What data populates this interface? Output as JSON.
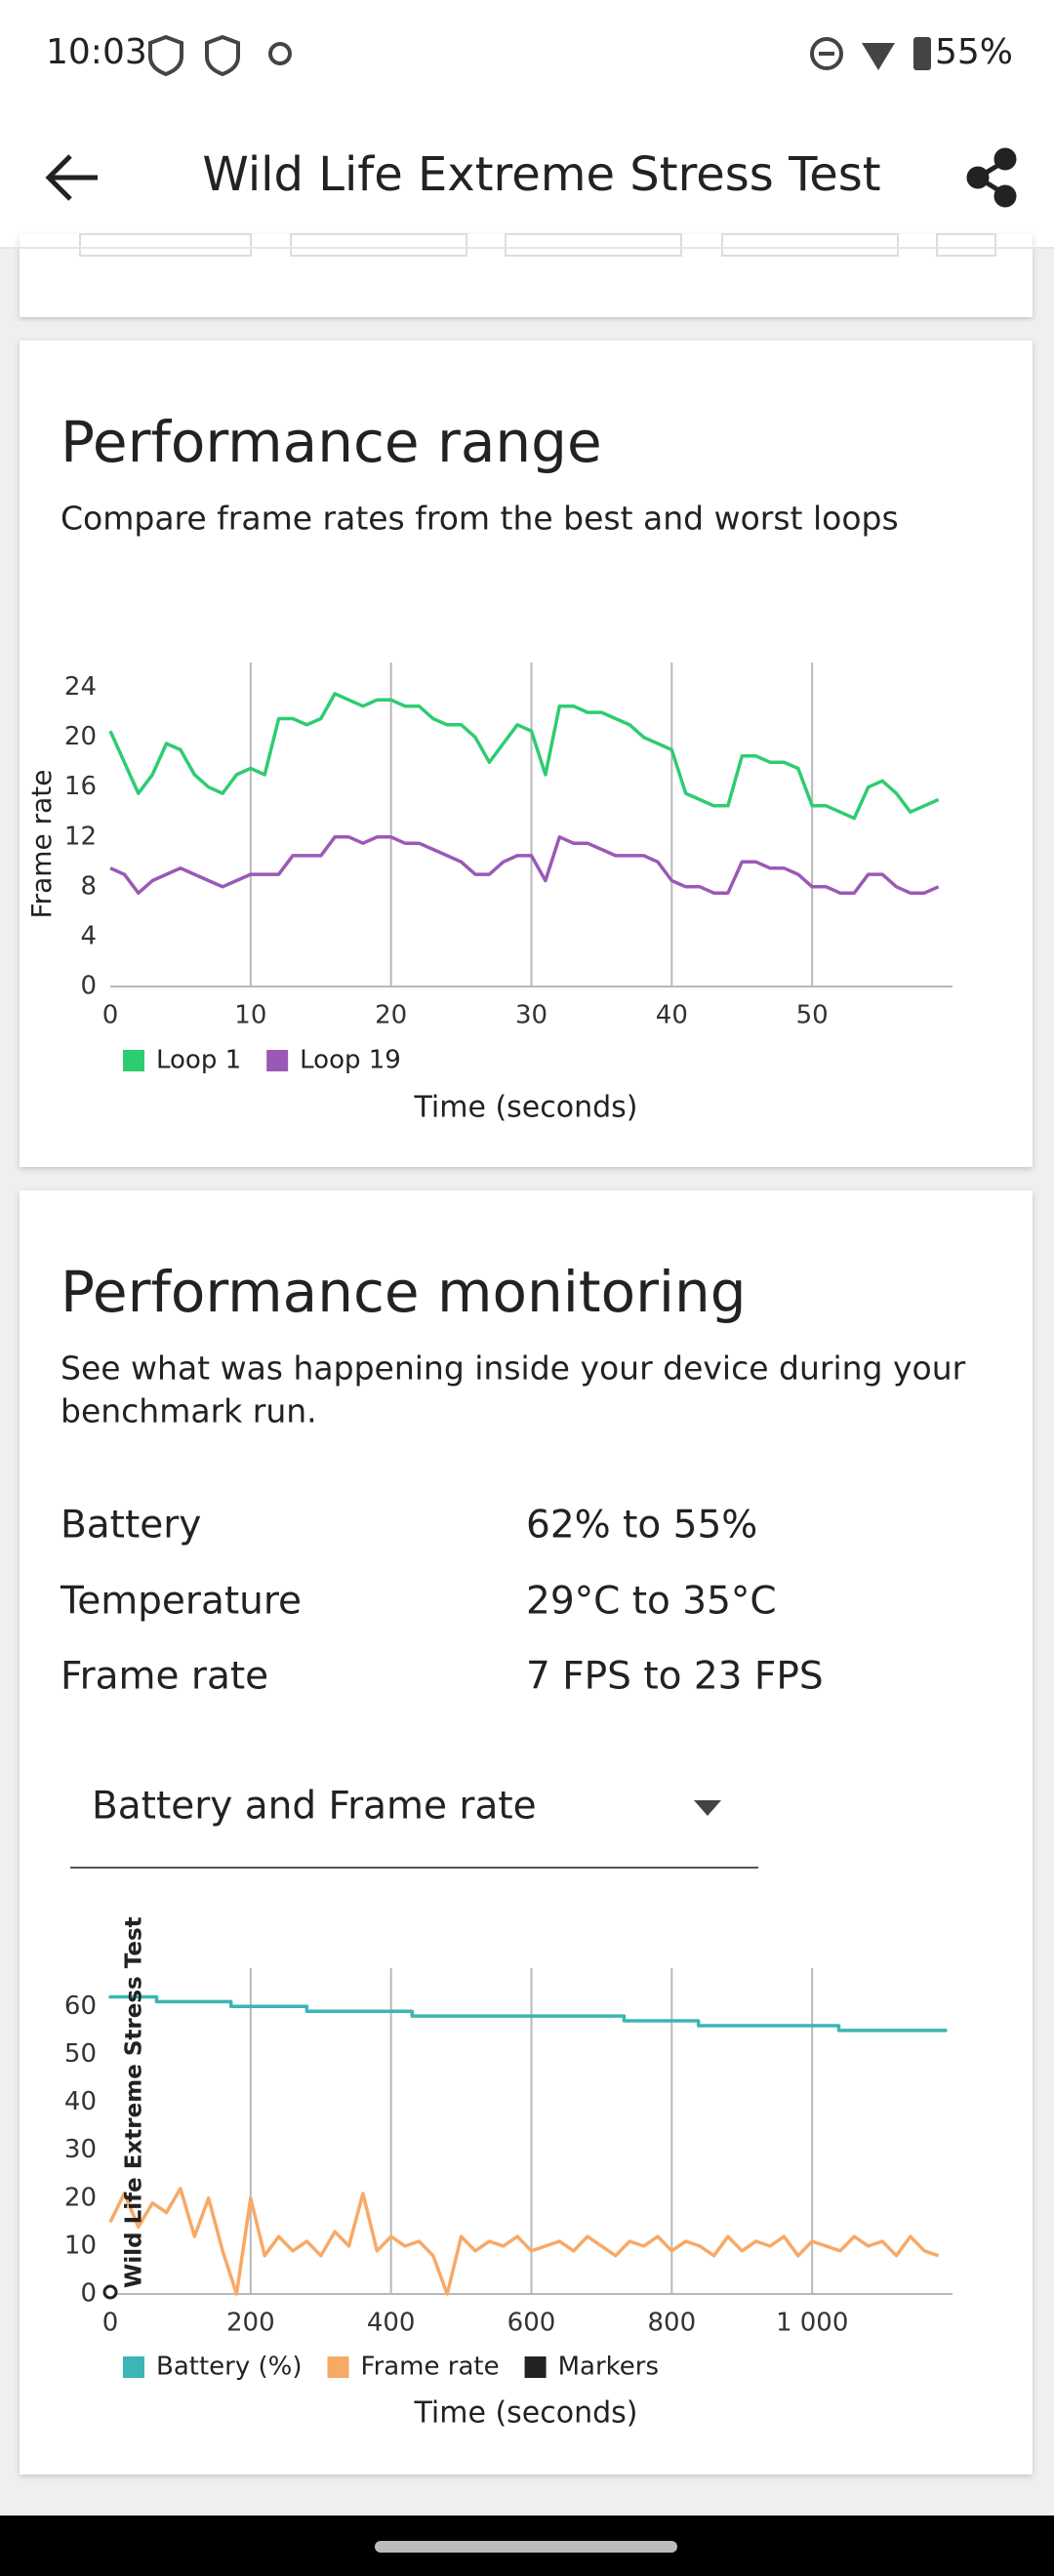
{
  "status_bar": {
    "time": "10:03",
    "battery": "55%"
  },
  "app_bar": {
    "title": "Wild Life Extreme Stress Test"
  },
  "performance_range": {
    "title": "Performance range",
    "subtitle": "Compare frame rates from the best and worst loops",
    "chart": {
      "type": "line",
      "x_label": "Time (seconds)",
      "y_label": "Frame rate",
      "xlim": [
        0,
        60
      ],
      "xticks": [
        0,
        10,
        20,
        30,
        40,
        50
      ],
      "ylim": [
        0,
        26
      ],
      "yticks": [
        0,
        4,
        8,
        12,
        16,
        20,
        24
      ],
      "grid": "x",
      "x": [
        0,
        1,
        2,
        3,
        4,
        5,
        6,
        7,
        8,
        9,
        10,
        11,
        12,
        13,
        14,
        15,
        16,
        17,
        18,
        19,
        20,
        21,
        22,
        23,
        24,
        25,
        26,
        27,
        28,
        29,
        30,
        31,
        32,
        33,
        34,
        35,
        36,
        37,
        38,
        39,
        40,
        41,
        42,
        43,
        44,
        45,
        46,
        47,
        48,
        49,
        50,
        51,
        52,
        53,
        54,
        55,
        56,
        57,
        58,
        59
      ],
      "series": [
        {
          "name": "Loop 1",
          "color": "#2ecc71",
          "values": [
            20.5,
            18,
            15.5,
            17,
            19.5,
            19,
            17,
            16,
            15.5,
            17,
            17.5,
            17,
            21.5,
            21.5,
            21,
            21.5,
            23.5,
            23,
            22.5,
            23,
            23,
            22.5,
            22.5,
            21.5,
            21,
            21,
            20,
            18,
            19.5,
            21,
            20.5,
            17,
            22.5,
            22.5,
            22,
            22,
            21.5,
            21,
            20,
            19.5,
            19,
            15.5,
            15,
            14.5,
            14.5,
            18.5,
            18.5,
            18,
            18,
            17.5,
            14.5,
            14.5,
            14,
            13.5,
            16,
            16.5,
            15.5,
            14,
            14.5,
            15
          ]
        },
        {
          "name": "Loop 19",
          "color": "#9b59b6",
          "values": [
            9.5,
            9,
            7.5,
            8.5,
            9,
            9.5,
            9,
            8.5,
            8,
            8.5,
            9,
            9,
            9,
            10.5,
            10.5,
            10.5,
            12,
            12,
            11.5,
            12,
            12,
            11.5,
            11.5,
            11,
            10.5,
            10,
            9,
            9,
            10,
            10.5,
            10.5,
            8.5,
            12,
            11.5,
            11.5,
            11,
            10.5,
            10.5,
            10.5,
            10,
            8.5,
            8,
            8,
            7.5,
            7.5,
            10,
            10,
            9.5,
            9.5,
            9,
            8,
            8,
            7.5,
            7.5,
            9,
            9,
            8,
            7.5,
            7.5,
            8
          ]
        }
      ]
    }
  },
  "performance_monitoring": {
    "title": "Performance monitoring",
    "subtitle": [
      "See what was happening inside your device during your",
      "benchmark run."
    ],
    "rows": [
      {
        "label": "Battery",
        "value": "62% to 55%"
      },
      {
        "label": "Temperature",
        "value": "29°C to 35°C"
      },
      {
        "label": "Frame rate",
        "value": "7 FPS to 23 FPS"
      }
    ],
    "dropdown": "Battery and Frame rate",
    "chart": {
      "type": "line",
      "x_label": "Time (seconds)",
      "xlim": [
        0,
        1200
      ],
      "xticks": [
        0,
        200,
        400,
        600,
        800,
        {
          "value": 1000,
          "label": "1 000"
        }
      ],
      "ylim": [
        0,
        68
      ],
      "yticks": [
        0,
        10,
        20,
        30,
        40,
        50,
        60
      ],
      "grid": "x",
      "series": [
        {
          "name": "Battery (%)",
          "color": "#3bb5b5",
          "step": true,
          "x": [
            0,
            66,
            172,
            280,
            430,
            732,
            838,
            1038,
            1190
          ],
          "values": [
            62,
            61,
            60,
            59,
            58,
            57,
            56,
            55,
            55
          ]
        },
        {
          "name": "Frame rate",
          "color": "#f7a966",
          "x": [
            0,
            20,
            40,
            60,
            80,
            100,
            120,
            140,
            160,
            180,
            200,
            220,
            240,
            260,
            280,
            300,
            320,
            340,
            360,
            380,
            400,
            420,
            440,
            460,
            480,
            500,
            520,
            540,
            560,
            580,
            600,
            620,
            640,
            660,
            680,
            700,
            720,
            740,
            760,
            780,
            800,
            820,
            840,
            860,
            880,
            900,
            920,
            940,
            960,
            980,
            1000,
            1020,
            1040,
            1060,
            1080,
            1100,
            1120,
            1140,
            1160,
            1180
          ],
          "values": [
            15,
            21,
            14,
            19,
            17,
            22,
            12,
            20,
            9,
            0,
            20,
            8,
            12,
            9,
            11,
            8,
            13,
            10,
            21,
            9,
            12,
            10,
            11,
            8,
            0,
            12,
            9,
            11,
            10,
            12,
            9,
            10,
            11,
            9,
            12,
            10,
            8,
            11,
            10,
            12,
            9,
            11,
            10,
            8,
            12,
            9,
            11,
            10,
            12,
            8,
            11,
            10,
            9,
            12,
            10,
            11,
            8,
            12,
            9,
            8
          ]
        }
      ],
      "markers": {
        "name": "Markers",
        "color": "#222222",
        "items": [
          {
            "x": 0,
            "label": "Wild Life Extreme Stress Test"
          }
        ]
      }
    }
  }
}
